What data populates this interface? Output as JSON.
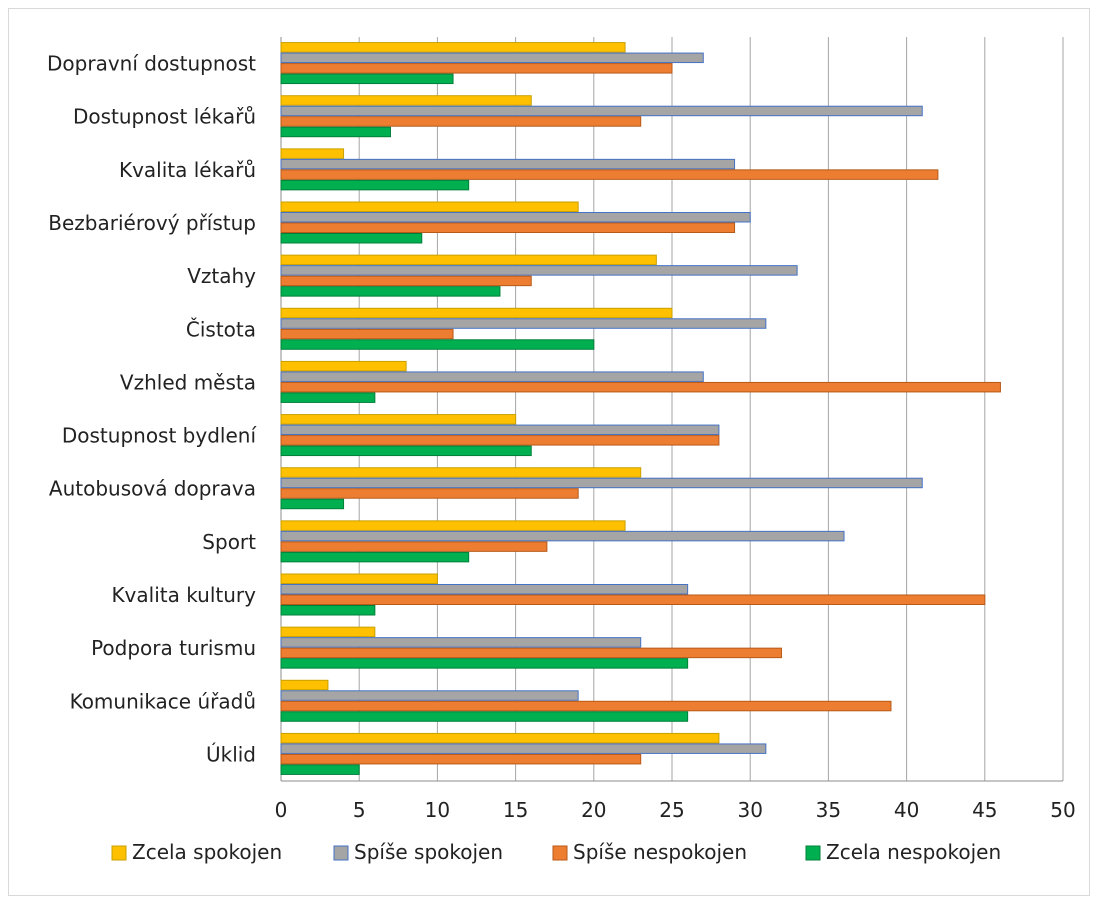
{
  "chart_data": {
    "type": "bar",
    "orientation": "horizontal",
    "categories": [
      "Dopravní dostupnost",
      "Dostupnost lékařů",
      "Kvalita lékařů",
      "Bezbariérový přístup",
      "Vztahy",
      "Čistota",
      "Vzhled města",
      "Dostupnost bydlení",
      "Autobusová doprava",
      "Sport",
      "Kvalita kultury",
      "Podpora turismu",
      "Komunikace úřadů",
      "Úklid"
    ],
    "series": [
      {
        "name": "Zcela spokojen",
        "color": "#FFC000",
        "stroke": "#C9A000",
        "values": [
          22,
          16,
          4,
          19,
          24,
          25,
          8,
          15,
          23,
          22,
          10,
          6,
          3,
          28
        ]
      },
      {
        "name": "Spíše spokojen",
        "color": "#A5A5A5",
        "stroke": "#4472C4",
        "values": [
          27,
          41,
          29,
          30,
          33,
          31,
          27,
          28,
          41,
          36,
          26,
          23,
          19,
          31
        ]
      },
      {
        "name": "Spíše nespokojen",
        "color": "#ED7D31",
        "stroke": "#B65A1A",
        "values": [
          25,
          23,
          42,
          29,
          16,
          11,
          46,
          28,
          19,
          17,
          45,
          32,
          39,
          23
        ]
      },
      {
        "name": "Zcela nespokojen",
        "color": "#00B050",
        "stroke": "#00803A",
        "values": [
          11,
          7,
          12,
          9,
          14,
          20,
          6,
          16,
          4,
          12,
          6,
          26,
          26,
          5
        ]
      }
    ],
    "xlim": [
      0,
      50
    ],
    "xticks": [
      "0",
      "5",
      "10",
      "15",
      "20",
      "25",
      "30",
      "35",
      "40",
      "45",
      "50"
    ],
    "grid": "vertical",
    "legend_position": "bottom",
    "title": "",
    "xlabel": "",
    "ylabel": ""
  }
}
